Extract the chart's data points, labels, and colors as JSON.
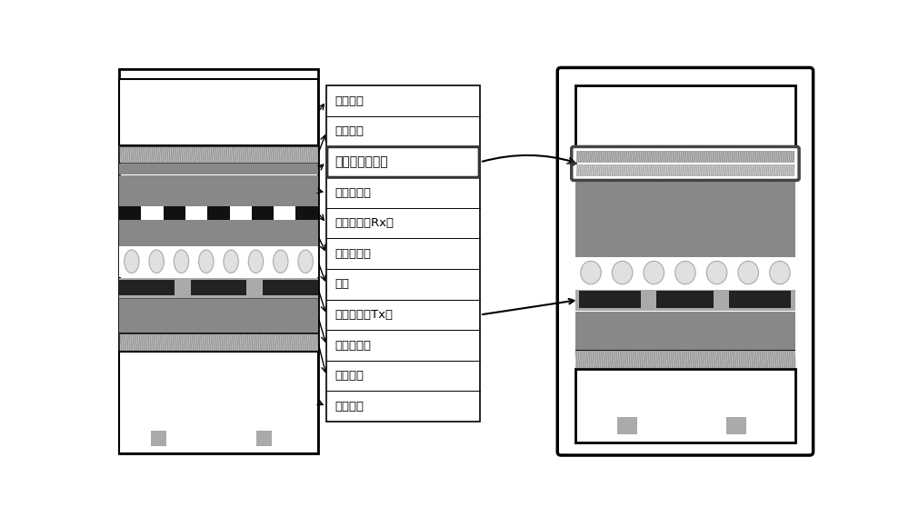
{
  "bg_color": "#ffffff",
  "labels": [
    "保护玻璃",
    "前偏光片",
    "抗干扰防静电膜",
    "前导电玻璃",
    "感测线路（Rx）",
    "彩色滤光片",
    "液晶",
    "驱动线路（Tx）",
    "后导电玻璃",
    "后偏光片",
    "背光模组"
  ],
  "highlighted_label": "抗干扰防静电膜",
  "layer_colors": {
    "protective_glass": "#ffffff",
    "front_polarizer": "#888888",
    "anti_static": "#aaaaaa",
    "front_glass": "#999999",
    "rx_bg": "#888888",
    "rx_black": "#111111",
    "rx_white": "#ffffff",
    "color_filter": "#888888",
    "liquid_crystal_bg": "#ffffff",
    "ellipse_fill": "#e0e0e0",
    "ellipse_edge": "#aaaaaa",
    "tx_bg": "#aaaaaa",
    "tx_dark": "#222222",
    "rear_glass": "#888888",
    "rear_polarizer": "#777777",
    "backlight": "#ffffff",
    "gray_square": "#aaaaaa"
  }
}
